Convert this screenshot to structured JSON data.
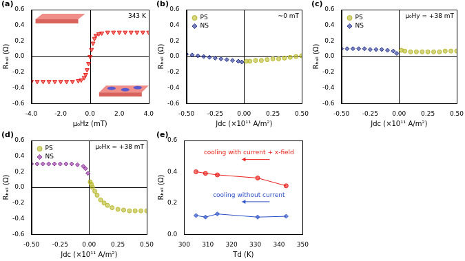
{
  "chart_data": [
    {
      "type": "scatter",
      "title": "(a)",
      "x_label": "μ₀Hz (mT)",
      "y_label": "Rₕₐₗₗ (Ω)",
      "xlim": [
        -4,
        4
      ],
      "xticks": [
        {
          "value": -4,
          "label": "-4.0"
        },
        {
          "value": -2,
          "label": "-2.0"
        },
        {
          "value": 0,
          "label": "0.0"
        },
        {
          "value": 2,
          "label": "2.0"
        },
        {
          "value": 4,
          "label": "4.0"
        }
      ],
      "ylim": [
        -0.6,
        0.6
      ],
      "yticks": [
        -0.6,
        -0.4,
        -0.2,
        {
          "value": 0,
          "label": "0.0"
        },
        0.2,
        0.4,
        0.6
      ],
      "grid": false,
      "annotations": [
        "343 K"
      ],
      "series": [
        {
          "color": "#e8201a",
          "marker": "triangle_down",
          "x": [
            -4.0,
            -3.6,
            -3.2,
            -2.8,
            -2.4,
            -2.0,
            -1.6,
            -1.2,
            -0.8,
            -0.6,
            -0.4,
            -0.3,
            -0.2,
            -0.1,
            0,
            0.1,
            0.2,
            0.3,
            0.4,
            0.6,
            0.8,
            1.2,
            1.6,
            2.0,
            2.4,
            2.8,
            3.2,
            3.6,
            4.0
          ],
          "values": [
            -0.32,
            -0.32,
            -0.32,
            -0.32,
            -0.32,
            -0.32,
            -0.32,
            -0.32,
            -0.31,
            -0.3,
            -0.27,
            -0.23,
            -0.17,
            -0.09,
            0.0,
            0.09,
            0.17,
            0.23,
            0.27,
            0.29,
            0.3,
            0.31,
            0.31,
            0.31,
            0.31,
            0.31,
            0.31,
            0.31,
            0.31
          ]
        }
      ]
    },
    {
      "type": "scatter",
      "title": "(b)",
      "x_label": "Jdc (×10¹¹ A/m²)",
      "y_label": "Rₕₐₗₗ (Ω)",
      "xlim": [
        -0.5,
        0.5
      ],
      "xticks": [
        {
          "value": -0.5,
          "label": "-0.50"
        },
        {
          "value": -0.25,
          "label": "-0.25"
        },
        {
          "value": 0,
          "label": "0.00"
        },
        {
          "value": 0.25,
          "label": "0.25"
        },
        {
          "value": 0.5,
          "label": "0.50"
        }
      ],
      "ylim": [
        -0.6,
        0.6
      ],
      "yticks": [
        -0.6,
        -0.4,
        -0.2,
        {
          "value": 0,
          "label": "0.0"
        },
        0.2,
        0.4,
        0.6
      ],
      "grid": false,
      "legend": "upper left",
      "annotations": [
        "~0 mT"
      ],
      "series": [
        {
          "name": "PS",
          "color": "#b8b82a",
          "marker": "circle",
          "x": [
            0.02,
            0.05,
            0.1,
            0.15,
            0.2,
            0.25,
            0.3,
            0.35,
            0.4,
            0.45,
            0.5
          ],
          "values": [
            -0.06,
            -0.06,
            -0.05,
            -0.05,
            -0.04,
            -0.03,
            -0.03,
            -0.02,
            -0.01,
            0.0,
            0.01
          ]
        },
        {
          "name": "NS",
          "color": "#1f2e8c",
          "marker": "diamond",
          "x": [
            -0.5,
            -0.45,
            -0.4,
            -0.35,
            -0.3,
            -0.25,
            -0.2,
            -0.15,
            -0.1,
            -0.05,
            -0.02
          ],
          "values": [
            0.03,
            0.02,
            0.01,
            0.0,
            -0.01,
            -0.02,
            -0.03,
            -0.04,
            -0.05,
            -0.06,
            -0.07
          ]
        }
      ]
    },
    {
      "type": "scatter",
      "title": "(c)",
      "x_label": "Jdc (×10¹¹ A/m²)",
      "y_label": "Rₕₐₗₗ (Ω)",
      "xlim": [
        -0.5,
        0.5
      ],
      "xticks": [
        {
          "value": -0.5,
          "label": "-0.50"
        },
        {
          "value": -0.25,
          "label": "-0.25"
        },
        {
          "value": 0,
          "label": "0.00"
        },
        {
          "value": 0.25,
          "label": "0.25"
        },
        {
          "value": 0.5,
          "label": "0.50"
        }
      ],
      "ylim": [
        -0.6,
        0.6
      ],
      "yticks": [
        -0.6,
        -0.4,
        -0.2,
        {
          "value": 0,
          "label": "0.0"
        },
        0.2,
        0.4,
        0.6
      ],
      "grid": false,
      "legend": "upper left",
      "annotations": [
        "μ₀Hy = +38 mT"
      ],
      "series": [
        {
          "name": "PS",
          "color": "#b8b82a",
          "marker": "circle",
          "x": [
            0.02,
            0.05,
            0.1,
            0.15,
            0.2,
            0.25,
            0.3,
            0.35,
            0.4,
            0.45,
            0.5
          ],
          "values": [
            0.08,
            0.07,
            0.06,
            0.06,
            0.06,
            0.06,
            0.06,
            0.06,
            0.07,
            0.07,
            0.07
          ]
        },
        {
          "name": "NS",
          "color": "#1f2e8c",
          "marker": "diamond",
          "x": [
            -0.5,
            -0.45,
            -0.4,
            -0.35,
            -0.3,
            -0.25,
            -0.2,
            -0.15,
            -0.1,
            -0.05,
            -0.02
          ],
          "values": [
            0.1,
            0.1,
            0.1,
            0.1,
            0.1,
            0.09,
            0.09,
            0.09,
            0.08,
            0.07,
            0.04
          ]
        }
      ]
    },
    {
      "type": "scatter",
      "title": "(d)",
      "x_label": "Jdc (×10¹¹ A/m²)",
      "y_label": "Rₕₐₗₗ (Ω)",
      "xlim": [
        -0.5,
        0.5
      ],
      "xticks": [
        {
          "value": -0.5,
          "label": "-0.50"
        },
        {
          "value": -0.25,
          "label": "-0.25"
        },
        {
          "value": 0,
          "label": "0.00"
        },
        {
          "value": 0.25,
          "label": "0.25"
        },
        {
          "value": 0.5,
          "label": "0.50"
        }
      ],
      "ylim": [
        -0.6,
        0.6
      ],
      "yticks": [
        -0.6,
        -0.4,
        -0.2,
        {
          "value": 0,
          "label": "0.0"
        },
        0.2,
        0.4,
        0.6
      ],
      "grid": false,
      "legend": "upper left",
      "annotations": [
        "μ₀Hx = +38 mT"
      ],
      "series": [
        {
          "name": "PS",
          "color": "#b8b82a",
          "marker": "circle",
          "x": [
            0.01,
            0.02,
            0.03,
            0.05,
            0.07,
            0.1,
            0.13,
            0.16,
            0.2,
            0.25,
            0.3,
            0.35,
            0.4,
            0.45,
            0.5
          ],
          "values": [
            0.07,
            0.04,
            0.0,
            -0.05,
            -0.1,
            -0.16,
            -0.2,
            -0.23,
            -0.26,
            -0.28,
            -0.29,
            -0.3,
            -0.3,
            -0.3,
            -0.3
          ]
        },
        {
          "name": "NS",
          "color": "#8a2a9a",
          "marker": "diamond",
          "x": [
            -0.5,
            -0.45,
            -0.4,
            -0.35,
            -0.3,
            -0.25,
            -0.2,
            -0.15,
            -0.1,
            -0.05,
            -0.03,
            -0.01
          ],
          "values": [
            0.3,
            0.3,
            0.3,
            0.3,
            0.3,
            0.3,
            0.3,
            0.3,
            0.29,
            0.27,
            0.24,
            0.18
          ]
        }
      ]
    },
    {
      "type": "line",
      "title": "(e)",
      "x_label": "Td (K)",
      "y_label": "Rₕₐₗₗ (Ω)",
      "xlim": [
        300,
        350
      ],
      "xticks": [
        300,
        310,
        320,
        330,
        340,
        350
      ],
      "ylim": [
        0,
        0.6
      ],
      "yticks": [
        {
          "value": 0,
          "label": "0.0"
        },
        0.2,
        0.4,
        0.6
      ],
      "grid": false,
      "annotations": [
        "cooling with current + x-field",
        "cooling without current"
      ],
      "series": [
        {
          "color": "#e8201a",
          "marker": "circle",
          "line_style": "solid",
          "x": [
            305,
            309,
            314,
            331,
            343
          ],
          "values": [
            0.4,
            0.39,
            0.38,
            0.36,
            0.31
          ]
        },
        {
          "color": "#2a50c8",
          "marker": "diamond",
          "line_style": "solid",
          "x": [
            305,
            309,
            314,
            331,
            343
          ],
          "values": [
            0.12,
            0.11,
            0.13,
            0.11,
            0.115
          ]
        }
      ]
    }
  ]
}
